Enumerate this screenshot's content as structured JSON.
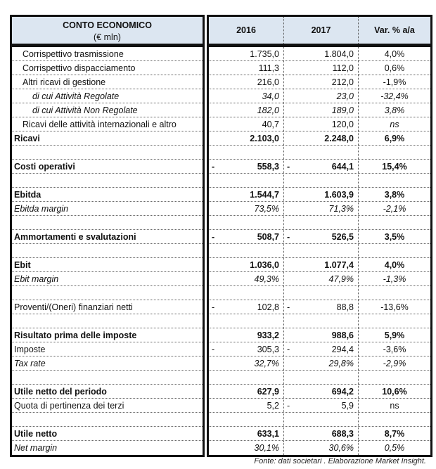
{
  "header": {
    "title": "CONTO ECONOMICO",
    "unit": "(€ mln)",
    "col_2016": "2016",
    "col_2017": "2017",
    "col_var": "Var. % a/a"
  },
  "rows": [
    {
      "label": "Corrispettivo trasmissione",
      "v2016": "1.735,0",
      "v2017": "1.804,0",
      "var": "4,0%",
      "style": "i1"
    },
    {
      "label": "Corrispettivo dispacciamento",
      "v2016": "111,3",
      "v2017": "112,0",
      "var": "0,6%",
      "style": "i1"
    },
    {
      "label": "Altri ricavi di gestione",
      "v2016": "216,0",
      "v2017": "212,0",
      "var": "-1,9%",
      "style": "i1"
    },
    {
      "label": "di cui Attività Regolate",
      "v2016": "34,0",
      "v2017": "23,0",
      "var": "-32,4%",
      "style": "i2 it"
    },
    {
      "label": "di cui Attività Non Regolate",
      "v2016": "182,0",
      "v2017": "189,0",
      "var": "3,8%",
      "style": "i2 it"
    },
    {
      "label": "Ricavi delle attività internazionali e altro",
      "v2016": "40,7",
      "v2017": "120,0",
      "var": "ns",
      "style": "i1",
      "varItalic": true
    },
    {
      "label": "Ricavi",
      "v2016": "2.103,0",
      "v2017": "2.248,0",
      "var": "6,9%",
      "style": "b"
    },
    {},
    {
      "label": "Costi operativi",
      "v2016": "558,3",
      "v2017": "644,1",
      "var": "15,4%",
      "style": "b",
      "neg2016": "-",
      "neg2017": "-"
    },
    {},
    {
      "label": "Ebitda",
      "v2016": "1.544,7",
      "v2017": "1.603,9",
      "var": "3,8%",
      "style": "b"
    },
    {
      "label": "Ebitda margin",
      "v2016": "73,5%",
      "v2017": "71,3%",
      "var": "-2,1%",
      "style": "it"
    },
    {},
    {
      "label": "Ammortamenti e svalutazioni",
      "v2016": "508,7",
      "v2017": "526,5",
      "var": "3,5%",
      "style": "b",
      "neg2016": "-",
      "neg2017": "-"
    },
    {},
    {
      "label": "Ebit",
      "v2016": "1.036,0",
      "v2017": "1.077,4",
      "var": "4,0%",
      "style": "b"
    },
    {
      "label": "Ebit margin",
      "v2016": "49,3%",
      "v2017": "47,9%",
      "var": "-1,3%",
      "style": "it"
    },
    {},
    {
      "label": "Proventi/(Oneri) finanziari netti",
      "v2016": "102,8",
      "v2017": "88,8",
      "var": "-13,6%",
      "style": "",
      "neg2016": "-",
      "neg2017": "-"
    },
    {},
    {
      "label": "Risultato prima delle imposte",
      "v2016": "933,2",
      "v2017": "988,6",
      "var": "5,9%",
      "style": "b"
    },
    {
      "label": "Imposte",
      "v2016": "305,3",
      "v2017": "294,4",
      "var": "-3,6%",
      "style": "",
      "neg2016": "-",
      "neg2017": "-"
    },
    {
      "label": "Tax rate",
      "v2016": "32,7%",
      "v2017": "29,8%",
      "var": "-2,9%",
      "style": "it"
    },
    {},
    {
      "label": "Utile netto del periodo",
      "v2016": "627,9",
      "v2017": "694,2",
      "var": "10,6%",
      "style": "b"
    },
    {
      "label": "Quota di pertinenza dei terzi",
      "v2016": "5,2",
      "v2017": "5,9",
      "var": "ns",
      "style": "",
      "neg2017": "-"
    },
    {},
    {
      "label": "Utile netto",
      "v2016": "633,1",
      "v2017": "688,3",
      "var": "8,7%",
      "style": "b"
    },
    {
      "label": "Net margin",
      "v2016": "30,1%",
      "v2017": "30,6%",
      "var": "0,5%",
      "style": "it"
    }
  ],
  "source": "Fonte: dati societari . Elaborazione Market Insight."
}
